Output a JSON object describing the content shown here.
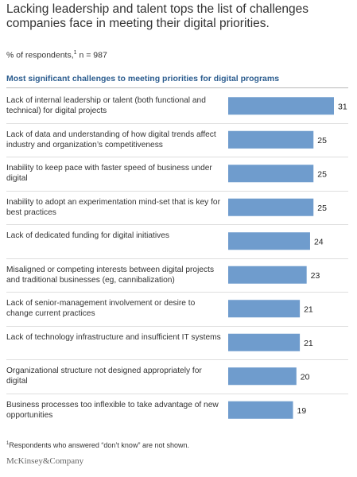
{
  "title": "Lacking leadership and talent tops the list of challenges companies face in meeting their digital priorities.",
  "subtitle": {
    "prefix": "% of respondents,",
    "sup": "1",
    "suffix": " n = 987"
  },
  "footnote": {
    "sup": "1",
    "text": "Respondents who answered “don’t know” are not shown."
  },
  "logo": "McKinsey&Company",
  "colors": {
    "bar": "#6f9ccd",
    "heading": "#2c5d8f"
  },
  "chart_data": {
    "type": "bar",
    "orientation": "horizontal",
    "title": "Most significant challenges to meeting priorities for digital programs",
    "categories": [
      "Lack of internal leadership or talent (both functional and technical) for digital projects",
      "Lack of data and understanding of how digital trends affect industry and organization’s competitiveness",
      "Inability to keep pace with faster speed of business under digital",
      "Inability to adopt an experimentation mind-set that is key for best practices",
      "Lack of dedicated funding for digital initiatives",
      "Misaligned or competing interests between digital projects and traditional businesses (eg, cannibalization)",
      "Lack of senior-management involvement or desire to change current practices",
      "Lack of technology infrastructure and insufficient IT systems",
      "Organizational structure not designed appropriately for digital",
      "Business processes too inflexible to take advantage of new opportunities"
    ],
    "values": [
      31,
      25,
      25,
      25,
      24,
      23,
      21,
      21,
      20,
      19
    ],
    "xlim": [
      0,
      31
    ]
  }
}
